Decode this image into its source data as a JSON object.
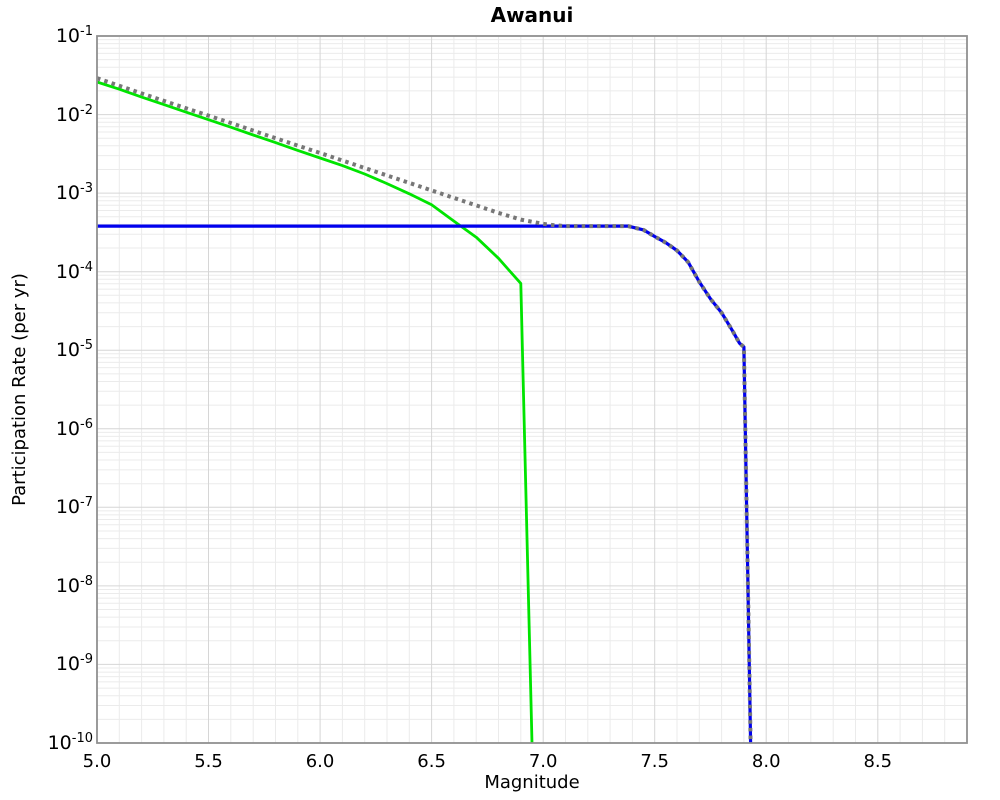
{
  "title": "Awanui",
  "colors": {
    "background": "#ffffff",
    "grid_major": "#d6d6d6",
    "grid_minor": "#ebebeb",
    "plot_border": "#909090",
    "series_gray": "#777777",
    "series_blue": "#0000ee",
    "series_green": "#00e400"
  },
  "chart_data": {
    "type": "line",
    "title": "Awanui",
    "xlabel": "Magnitude",
    "ylabel": "Participation Rate (per yr)",
    "xlim": [
      5.0,
      8.9
    ],
    "ylog": true,
    "ylim": [
      1e-10,
      0.1
    ],
    "x_major_ticks": [
      5.0,
      5.5,
      6.0,
      6.5,
      7.0,
      7.5,
      8.0,
      8.5
    ],
    "x_tick_labels": [
      "5.0",
      "5.5",
      "6.0",
      "6.5",
      "7.0",
      "7.5",
      "8.0",
      "8.5"
    ],
    "x_minor_step": 0.1,
    "y_decade_exponents": [
      -1,
      -2,
      -3,
      -4,
      -5,
      -6,
      -7,
      -8,
      -9,
      -10
    ],
    "grid": true,
    "legend_position": "none",
    "series": [
      {
        "name": "gray-dotted-line",
        "style": "dotted",
        "color": "#777777",
        "width": 4,
        "points": [
          [
            5.0,
            0.029
          ],
          [
            5.2,
            0.0186
          ],
          [
            5.4,
            0.012
          ],
          [
            5.6,
            0.0078
          ],
          [
            5.8,
            0.005
          ],
          [
            6.0,
            0.00324
          ],
          [
            6.2,
            0.00209
          ],
          [
            6.4,
            0.00135
          ],
          [
            6.6,
            0.00087
          ],
          [
            6.8,
            0.00056
          ],
          [
            6.9,
            0.00046
          ],
          [
            7.0,
            0.000405
          ],
          [
            7.05,
            0.00039
          ],
          [
            7.1,
            0.00038
          ],
          [
            7.2,
            0.00038
          ],
          [
            7.3,
            0.00038
          ],
          [
            7.38,
            0.00038
          ],
          [
            7.45,
            0.00034
          ],
          [
            7.5,
            0.00028
          ],
          [
            7.55,
            0.000234
          ],
          [
            7.6,
            0.000186
          ],
          [
            7.65,
            0.000132
          ],
          [
            7.7,
            7.4e-05
          ],
          [
            7.75,
            4.5e-05
          ],
          [
            7.8,
            3e-05
          ],
          [
            7.85,
            1.74e-05
          ],
          [
            7.88,
            1.23e-05
          ],
          [
            7.9,
            1.1e-05
          ],
          [
            7.93,
            1e-10
          ]
        ]
      },
      {
        "name": "blue-solid-line",
        "style": "solid",
        "color": "#0000ee",
        "width": 3.2,
        "points": [
          [
            5.0,
            0.00038
          ],
          [
            6.0,
            0.00038
          ],
          [
            7.0,
            0.00038
          ],
          [
            7.3,
            0.00038
          ],
          [
            7.38,
            0.00038
          ],
          [
            7.45,
            0.00034
          ],
          [
            7.5,
            0.00028
          ],
          [
            7.55,
            0.000234
          ],
          [
            7.6,
            0.000186
          ],
          [
            7.65,
            0.000132
          ],
          [
            7.7,
            7.4e-05
          ],
          [
            7.75,
            4.5e-05
          ],
          [
            7.8,
            3e-05
          ],
          [
            7.85,
            1.74e-05
          ],
          [
            7.88,
            1.23e-05
          ],
          [
            7.9,
            1.1e-05
          ],
          [
            7.93,
            1e-10
          ]
        ]
      },
      {
        "name": "green-solid-line",
        "style": "solid",
        "color": "#00e400",
        "width": 2.8,
        "points": [
          [
            5.0,
            0.026
          ],
          [
            5.1,
            0.021
          ],
          [
            5.2,
            0.0167
          ],
          [
            5.3,
            0.0134
          ],
          [
            5.4,
            0.0107
          ],
          [
            5.5,
            0.0086
          ],
          [
            5.6,
            0.0069
          ],
          [
            5.7,
            0.0055
          ],
          [
            5.8,
            0.0044
          ],
          [
            5.9,
            0.0035
          ],
          [
            6.0,
            0.0028
          ],
          [
            6.1,
            0.00224
          ],
          [
            6.2,
            0.00175
          ],
          [
            6.3,
            0.00132
          ],
          [
            6.4,
            0.00098
          ],
          [
            6.5,
            0.00071
          ],
          [
            6.6,
            0.00044
          ],
          [
            6.7,
            0.000275
          ],
          [
            6.8,
            0.000148
          ],
          [
            6.85,
            0.000102
          ],
          [
            6.9,
            7.1e-05
          ],
          [
            6.95,
            1e-10
          ]
        ]
      }
    ]
  }
}
